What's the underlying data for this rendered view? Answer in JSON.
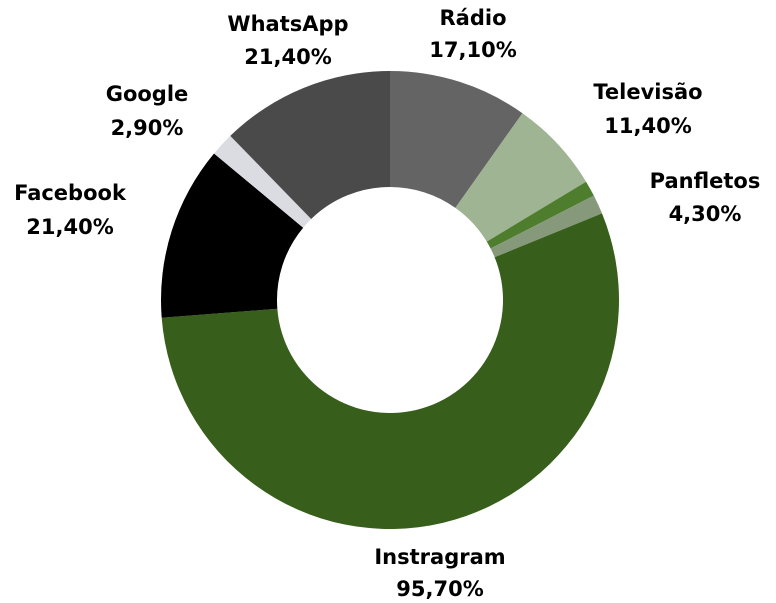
{
  "chart_data": {
    "type": "pie",
    "variant": "donut",
    "start_at": "12 o'clock",
    "direction": "clockwise",
    "legend": "none",
    "title": "",
    "slices": [
      {
        "name": "Rádio",
        "value": 17.1,
        "label": "17,10%",
        "color": "#646464"
      },
      {
        "name": "Televisão",
        "value": 11.4,
        "label": "11,40%",
        "color": "#9fb493"
      },
      {
        "name": "Panfletos",
        "value": 4.3,
        "label": "4,30%",
        "color": "#4f7d2e",
        "color_secondary": "#86997b"
      },
      {
        "name": "Instragram",
        "value": 95.7,
        "label": "95,70%",
        "color": "#375f1b"
      },
      {
        "name": "Facebook",
        "value": 21.4,
        "label": "21,40%",
        "color": "#000000"
      },
      {
        "name": "Google",
        "value": 2.9,
        "label": "2,90%",
        "color": "#dadce1"
      },
      {
        "name": "WhatsApp",
        "value": 21.4,
        "label": "21,40%",
        "color": "#4a4a4a"
      }
    ]
  }
}
